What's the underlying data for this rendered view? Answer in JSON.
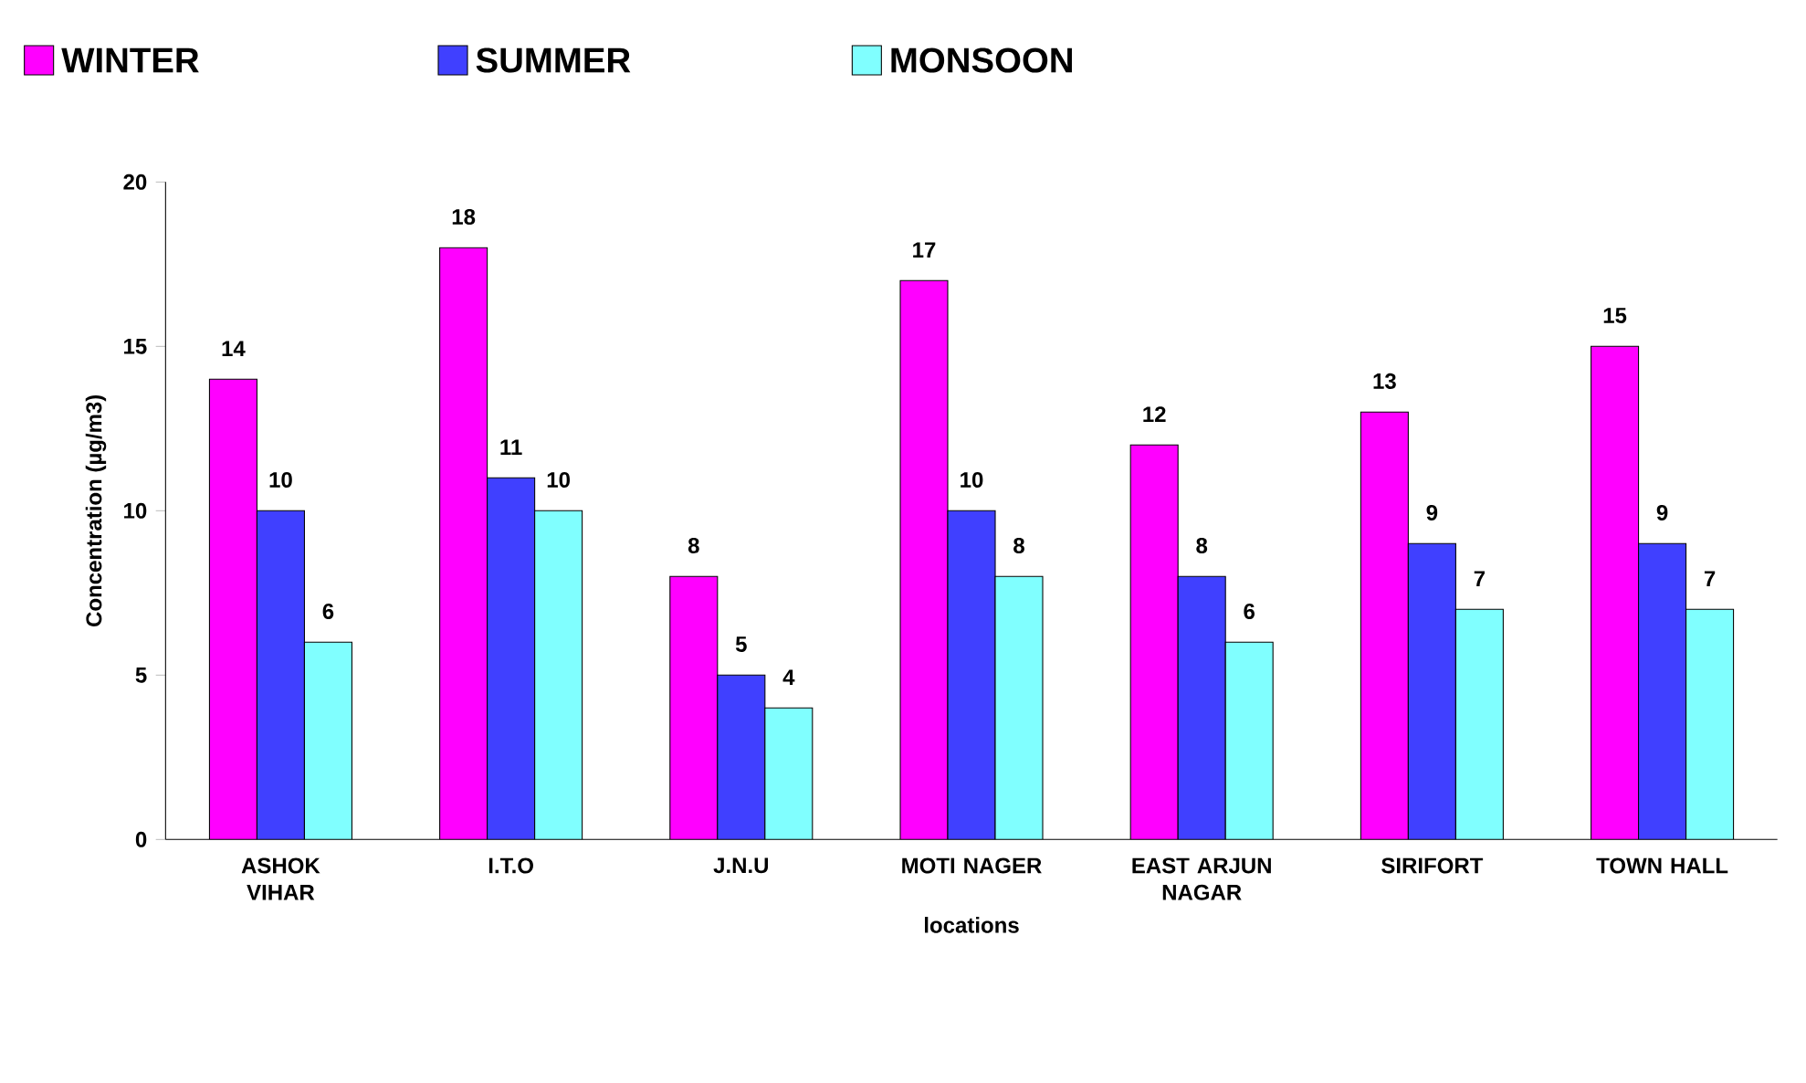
{
  "chart_data": {
    "type": "bar",
    "categories": [
      "ASHOK VIHAR",
      "I.T.O",
      "J.N.U",
      "MOTI NAGER",
      "EAST ARJUN NAGAR",
      "SIRIFORT",
      "TOWN HALL"
    ],
    "series": [
      {
        "name": "WINTER",
        "color": "#ff00ff",
        "values": [
          14,
          18,
          8,
          17,
          12,
          13,
          15
        ]
      },
      {
        "name": "SUMMER",
        "color": "#4040ff",
        "values": [
          10,
          11,
          5,
          10,
          8,
          9,
          9
        ]
      },
      {
        "name": "MONSOON",
        "color": "#80ffff",
        "values": [
          6,
          10,
          4,
          8,
          6,
          7,
          7
        ]
      }
    ],
    "xlabel": "locations",
    "ylabel": "Concentration (µg/m3)",
    "ylim": [
      0,
      20
    ],
    "yticks": [
      0,
      5,
      10,
      15,
      20
    ],
    "data_labels": true,
    "legend": "top",
    "grid": false
  }
}
